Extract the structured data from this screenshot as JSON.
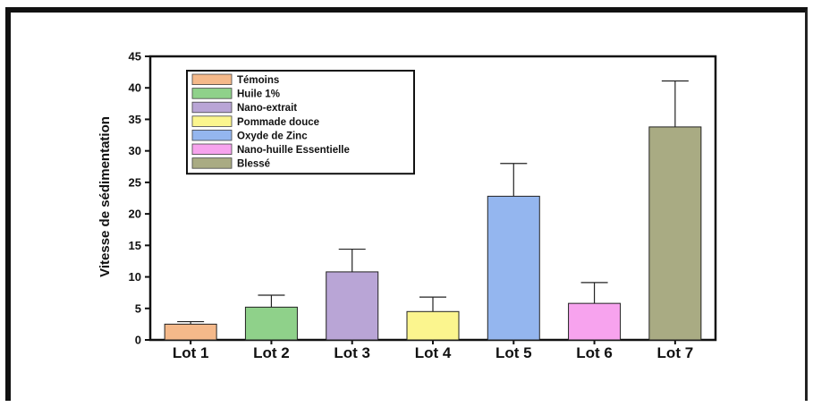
{
  "chart_data": {
    "type": "bar",
    "title": "",
    "xlabel": "",
    "ylabel": "Vitesse de sédimentation",
    "ylim": [
      0,
      45
    ],
    "yticks": [
      0,
      5,
      10,
      15,
      20,
      25,
      30,
      35,
      40,
      45
    ],
    "categories": [
      "Lot 1",
      "Lot 2",
      "Lot 3",
      "Lot 4",
      "Lot 5",
      "Lot 6",
      "Lot 7"
    ],
    "values": [
      2.5,
      5.2,
      10.8,
      4.5,
      22.8,
      5.8,
      33.8
    ],
    "errors": [
      0.4,
      1.9,
      3.6,
      2.3,
      5.2,
      3.3,
      7.3
    ],
    "colors": [
      "#f5b98a",
      "#8fd18a",
      "#b9a5d6",
      "#fbf58e",
      "#94b6ef",
      "#f7a3ee",
      "#a9ab83"
    ],
    "legend": {
      "placement": "top-left",
      "entries": [
        "Témoins",
        "Huile 1%",
        "Nano-extrait",
        "Pommade douce",
        "Oxyde de Zinc",
        "Nano-huille Essentielle",
        "Blessé"
      ]
    },
    "grid": false
  }
}
